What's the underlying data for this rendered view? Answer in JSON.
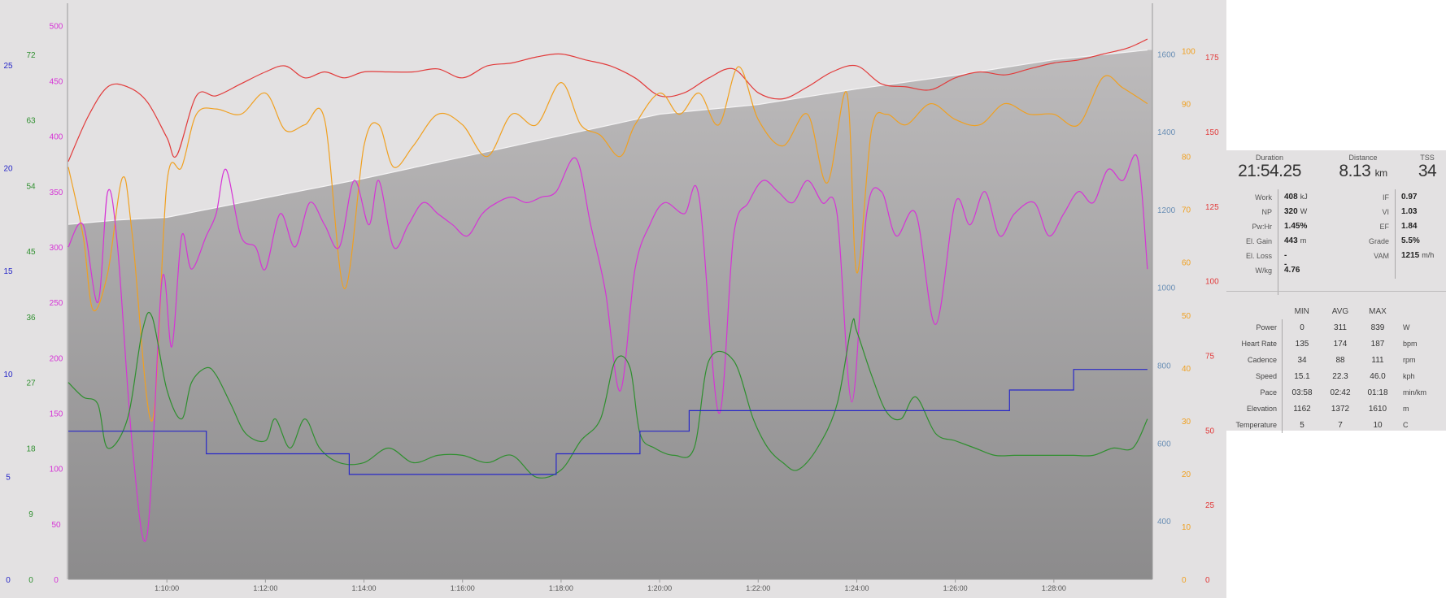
{
  "chart_data": {
    "type": "line",
    "x_ticks": [
      "1:10:00",
      "1:12:00",
      "1:14:00",
      "1:16:00",
      "1:18:00",
      "1:20:00",
      "1:22:00",
      "1:24:00",
      "1:26:00",
      "1:28:00"
    ],
    "x_range_minutes": [
      68,
      90
    ],
    "axes": [
      {
        "id": "speed",
        "side": "left",
        "color": "#2828c8",
        "range": [
          0,
          28
        ],
        "ticks": [
          "0",
          "5",
          "10",
          "15",
          "20",
          "25"
        ]
      },
      {
        "id": "cadence",
        "side": "left",
        "color": "#2f8f2f",
        "range": [
          0,
          79
        ],
        "ticks": [
          "0",
          "9",
          "18",
          "27",
          "36",
          "45",
          "54",
          "63",
          "72"
        ]
      },
      {
        "id": "power",
        "side": "left",
        "color": "#d633d6",
        "range": [
          0,
          520
        ],
        "ticks": [
          "0",
          "50",
          "100",
          "150",
          "200",
          "250",
          "300",
          "350",
          "400",
          "450",
          "500"
        ]
      },
      {
        "id": "elevation",
        "side": "right",
        "color": "#6a8fb5",
        "range": [
          250,
          1730
        ],
        "ticks": [
          "400",
          "600",
          "800",
          "1000",
          "1200",
          "1400",
          "1600"
        ]
      },
      {
        "id": "temperature",
        "side": "right",
        "color": "#f0a020",
        "range": [
          0,
          109
        ],
        "ticks": [
          "0",
          "10",
          "20",
          "30",
          "40",
          "50",
          "60",
          "70",
          "80",
          "90",
          "100"
        ]
      },
      {
        "id": "heart_rate",
        "side": "right",
        "color": "#e23b3b",
        "range": [
          0,
          193
        ],
        "ticks": [
          "0",
          "25",
          "50",
          "75",
          "100",
          "125",
          "150",
          "175"
        ]
      }
    ],
    "series": [
      {
        "axis": "elevation",
        "x": [
          68,
          69,
          70,
          72,
          74,
          76,
          78,
          80,
          82,
          84,
          86,
          88,
          89.9
        ],
        "y": [
          1162,
          1173,
          1180,
          1230,
          1280,
          1335,
          1390,
          1445,
          1470,
          1510,
          1545,
          1585,
          1610
        ]
      },
      {
        "axis": "heart_rate",
        "x": [
          68,
          68.4,
          68.8,
          69.2,
          69.6,
          70,
          70.2,
          70.6,
          71,
          71.5,
          72,
          72.4,
          72.8,
          73.2,
          73.6,
          74,
          74.5,
          75,
          75.5,
          76,
          76.5,
          77,
          77.5,
          78,
          78.5,
          79,
          79.5,
          80,
          80.5,
          81,
          81.5,
          82,
          82.5,
          83,
          83.5,
          84,
          84.5,
          85,
          85.5,
          86,
          86.5,
          87,
          87.5,
          88,
          88.5,
          89,
          89.5,
          89.9
        ],
        "y": [
          140,
          155,
          165,
          165,
          160,
          148,
          142,
          162,
          162,
          166,
          170,
          172,
          168,
          170,
          168,
          170,
          170,
          170,
          171,
          168,
          172,
          173,
          175,
          176,
          174,
          172,
          168,
          162,
          163,
          168,
          171,
          163,
          161,
          165,
          170,
          172,
          166,
          165,
          164,
          168,
          170,
          169,
          171,
          173,
          174,
          176,
          178,
          181
        ]
      },
      {
        "axis": "temperature",
        "x": [
          68,
          68.3,
          68.5,
          68.8,
          69.1,
          69.3,
          69.7,
          70,
          70.3,
          70.6,
          71,
          71.5,
          72,
          72.4,
          72.8,
          73.2,
          73.6,
          74,
          74.3,
          74.6,
          75,
          75.5,
          76,
          76.5,
          77,
          77.5,
          78,
          78.4,
          78.8,
          79.2,
          79.5,
          80,
          80.4,
          80.8,
          81.2,
          81.6,
          82,
          82.5,
          83,
          83.4,
          83.8,
          84,
          84.3,
          84.6,
          85,
          85.5,
          86,
          86.5,
          87,
          87.5,
          88,
          88.5,
          89,
          89.4,
          89.9
        ],
        "y": [
          78,
          65,
          51,
          58,
          76,
          65,
          30,
          75,
          78,
          88,
          89,
          88,
          92,
          85,
          86,
          87,
          55,
          82,
          86,
          78,
          82,
          88,
          86,
          80,
          88,
          86,
          94,
          86,
          84,
          80,
          86,
          92,
          88,
          92,
          86,
          97,
          87,
          82,
          88,
          75,
          92,
          58,
          85,
          88,
          86,
          90,
          87,
          86,
          90,
          88,
          88,
          86,
          95,
          93,
          90
        ]
      },
      {
        "axis": "power",
        "x": [
          68,
          68.3,
          68.6,
          68.8,
          69,
          69.3,
          69.6,
          69.9,
          70.1,
          70.3,
          70.5,
          70.8,
          71,
          71.2,
          71.5,
          71.8,
          72,
          72.3,
          72.6,
          72.9,
          73.2,
          73.5,
          73.8,
          74.1,
          74.3,
          74.6,
          74.9,
          75.2,
          75.5,
          75.8,
          76.1,
          76.4,
          76.7,
          77,
          77.3,
          77.6,
          77.9,
          78.3,
          78.6,
          78.9,
          79.2,
          79.5,
          79.8,
          80.1,
          80.5,
          80.8,
          81.2,
          81.5,
          81.8,
          82.1,
          82.4,
          82.7,
          83,
          83.3,
          83.6,
          83.9,
          84.2,
          84.5,
          84.8,
          85.2,
          85.6,
          86,
          86.3,
          86.6,
          86.9,
          87.2,
          87.6,
          87.9,
          88.2,
          88.5,
          88.8,
          89.1,
          89.4,
          89.7,
          89.9
        ],
        "y": [
          300,
          320,
          250,
          350,
          300,
          120,
          40,
          270,
          210,
          310,
          280,
          310,
          330,
          370,
          310,
          300,
          280,
          330,
          300,
          340,
          320,
          300,
          360,
          320,
          360,
          300,
          320,
          340,
          330,
          320,
          310,
          330,
          340,
          345,
          340,
          345,
          350,
          380,
          320,
          260,
          170,
          280,
          320,
          340,
          330,
          345,
          150,
          310,
          340,
          360,
          350,
          340,
          360,
          340,
          330,
          160,
          330,
          350,
          310,
          330,
          230,
          340,
          320,
          350,
          310,
          330,
          340,
          310,
          330,
          350,
          340,
          370,
          360,
          380,
          280
        ]
      },
      {
        "axis": "cadence",
        "x": [
          68,
          68.3,
          68.6,
          68.8,
          69.2,
          69.5,
          69.7,
          70,
          70.3,
          70.5,
          70.8,
          71,
          71.3,
          71.6,
          72,
          72.2,
          72.5,
          72.8,
          73.1,
          73.5,
          74,
          74.5,
          75,
          75.5,
          76,
          76.5,
          77,
          77.5,
          78,
          78.4,
          78.8,
          79.1,
          79.4,
          79.6,
          79.9,
          80.3,
          80.7,
          81,
          81.5,
          81.9,
          82.2,
          82.5,
          82.8,
          83.2,
          83.6,
          83.9,
          84,
          84.3,
          84.6,
          84.9,
          85.2,
          85.6,
          86,
          86.4,
          86.8,
          87.2,
          87.6,
          88,
          88.4,
          88.8,
          89.2,
          89.6,
          89.9
        ],
        "y": [
          27,
          25,
          24,
          18,
          22,
          34,
          36,
          26,
          22,
          27,
          29,
          28,
          24,
          20,
          19,
          22,
          18,
          22,
          18,
          16,
          16,
          18,
          16,
          17,
          17,
          16,
          17,
          14,
          15,
          19,
          22,
          30,
          29,
          20,
          18,
          17,
          18,
          30,
          30,
          22,
          18,
          16,
          15,
          18,
          24,
          35,
          34,
          28,
          23,
          22,
          25,
          20,
          19,
          18,
          17,
          17,
          17,
          17,
          17,
          17,
          18,
          18,
          22
        ]
      },
      {
        "axis": "speed",
        "x": [
          68,
          70.8,
          70.8,
          73.7,
          73.7,
          77.9,
          77.9,
          79.6,
          79.6,
          80.6,
          80.6,
          82.4,
          82.4,
          84,
          84,
          86,
          86,
          87.1,
          87.1,
          88.4,
          88.4,
          89.9
        ],
        "y": [
          7.2,
          7.2,
          6.1,
          6.1,
          5.1,
          5.1,
          6.1,
          6.1,
          7.2,
          7.2,
          8.2,
          8.2,
          8.2,
          8.2,
          8.2,
          8.2,
          8.2,
          8.2,
          9.2,
          9.2,
          10.2,
          10.2
        ]
      }
    ]
  },
  "summary": {
    "duration": {
      "label": "Duration",
      "value": "21:54.25"
    },
    "distance": {
      "label": "Distance",
      "value": "8.13",
      "unit": "km"
    },
    "tss": {
      "label": "TSS",
      "value": "34"
    }
  },
  "stats_left": [
    {
      "label": "Work",
      "value": "408",
      "unit": "kJ"
    },
    {
      "label": "NP",
      "value": "320",
      "unit": "W"
    },
    {
      "label": "Pw:Hr",
      "value": "1.45%",
      "unit": ""
    },
    {
      "label": "El. Gain",
      "value": "443",
      "unit": "m"
    },
    {
      "label": "El. Loss",
      "value": "--",
      "unit": ""
    },
    {
      "label": "W/kg",
      "value": "4.76",
      "unit": ""
    }
  ],
  "stats_right": [
    {
      "label": "IF",
      "value": "0.97",
      "unit": ""
    },
    {
      "label": "VI",
      "value": "1.03",
      "unit": ""
    },
    {
      "label": "EF",
      "value": "1.84",
      "unit": ""
    },
    {
      "label": "Grade",
      "value": "5.5%",
      "unit": ""
    },
    {
      "label": "VAM",
      "value": "1215",
      "unit": "m/h"
    }
  ],
  "metrics_table": {
    "headers": [
      "MIN",
      "AVG",
      "MAX"
    ],
    "rows": [
      {
        "label": "Power",
        "min": "0",
        "avg": "311",
        "max": "839",
        "unit": "W"
      },
      {
        "label": "Heart Rate",
        "min": "135",
        "avg": "174",
        "max": "187",
        "unit": "bpm"
      },
      {
        "label": "Cadence",
        "min": "34",
        "avg": "88",
        "max": "111",
        "unit": "rpm"
      },
      {
        "label": "Speed",
        "min": "15.1",
        "avg": "22.3",
        "max": "46.0",
        "unit": "kph"
      },
      {
        "label": "Pace",
        "min": "03:58",
        "avg": "02:42",
        "max": "01:18",
        "unit": "min/km"
      },
      {
        "label": "Elevation",
        "min": "1162",
        "avg": "1372",
        "max": "1610",
        "unit": "m"
      },
      {
        "label": "Temperature",
        "min": "5",
        "avg": "7",
        "max": "10",
        "unit": "C"
      }
    ]
  }
}
